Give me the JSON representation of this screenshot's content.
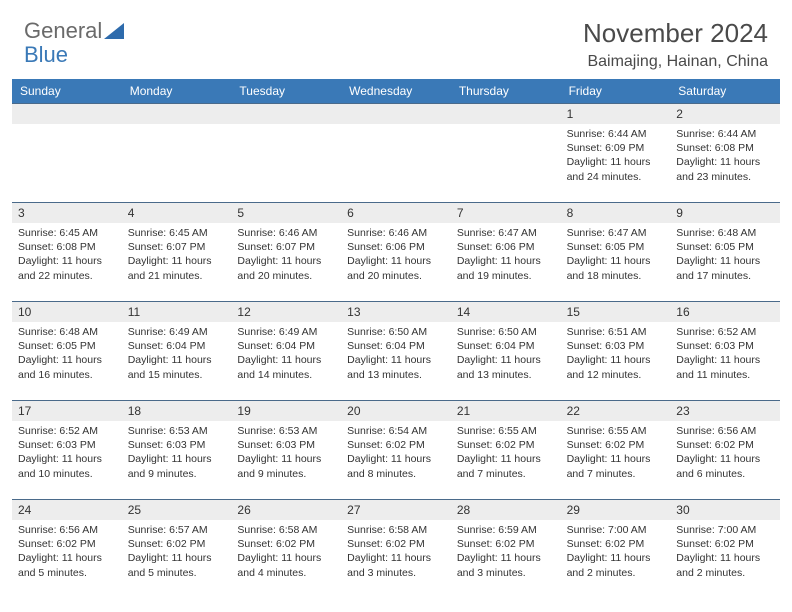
{
  "brand": {
    "part1": "General",
    "part2": "Blue"
  },
  "title": "November 2024",
  "location": "Baimajing, Hainan, China",
  "colors": {
    "header_bg": "#3a79b7",
    "header_text": "#ffffff",
    "daynum_bg": "#ededed",
    "divider": "#4a6a8a",
    "text": "#333333",
    "background": "#ffffff"
  },
  "dayNames": [
    "Sunday",
    "Monday",
    "Tuesday",
    "Wednesday",
    "Thursday",
    "Friday",
    "Saturday"
  ],
  "weeks": [
    [
      null,
      null,
      null,
      null,
      null,
      {
        "n": "1",
        "sr": "Sunrise: 6:44 AM",
        "ss": "Sunset: 6:09 PM",
        "d1": "Daylight: 11 hours",
        "d2": "and 24 minutes."
      },
      {
        "n": "2",
        "sr": "Sunrise: 6:44 AM",
        "ss": "Sunset: 6:08 PM",
        "d1": "Daylight: 11 hours",
        "d2": "and 23 minutes."
      }
    ],
    [
      {
        "n": "3",
        "sr": "Sunrise: 6:45 AM",
        "ss": "Sunset: 6:08 PM",
        "d1": "Daylight: 11 hours",
        "d2": "and 22 minutes."
      },
      {
        "n": "4",
        "sr": "Sunrise: 6:45 AM",
        "ss": "Sunset: 6:07 PM",
        "d1": "Daylight: 11 hours",
        "d2": "and 21 minutes."
      },
      {
        "n": "5",
        "sr": "Sunrise: 6:46 AM",
        "ss": "Sunset: 6:07 PM",
        "d1": "Daylight: 11 hours",
        "d2": "and 20 minutes."
      },
      {
        "n": "6",
        "sr": "Sunrise: 6:46 AM",
        "ss": "Sunset: 6:06 PM",
        "d1": "Daylight: 11 hours",
        "d2": "and 20 minutes."
      },
      {
        "n": "7",
        "sr": "Sunrise: 6:47 AM",
        "ss": "Sunset: 6:06 PM",
        "d1": "Daylight: 11 hours",
        "d2": "and 19 minutes."
      },
      {
        "n": "8",
        "sr": "Sunrise: 6:47 AM",
        "ss": "Sunset: 6:05 PM",
        "d1": "Daylight: 11 hours",
        "d2": "and 18 minutes."
      },
      {
        "n": "9",
        "sr": "Sunrise: 6:48 AM",
        "ss": "Sunset: 6:05 PM",
        "d1": "Daylight: 11 hours",
        "d2": "and 17 minutes."
      }
    ],
    [
      {
        "n": "10",
        "sr": "Sunrise: 6:48 AM",
        "ss": "Sunset: 6:05 PM",
        "d1": "Daylight: 11 hours",
        "d2": "and 16 minutes."
      },
      {
        "n": "11",
        "sr": "Sunrise: 6:49 AM",
        "ss": "Sunset: 6:04 PM",
        "d1": "Daylight: 11 hours",
        "d2": "and 15 minutes."
      },
      {
        "n": "12",
        "sr": "Sunrise: 6:49 AM",
        "ss": "Sunset: 6:04 PM",
        "d1": "Daylight: 11 hours",
        "d2": "and 14 minutes."
      },
      {
        "n": "13",
        "sr": "Sunrise: 6:50 AM",
        "ss": "Sunset: 6:04 PM",
        "d1": "Daylight: 11 hours",
        "d2": "and 13 minutes."
      },
      {
        "n": "14",
        "sr": "Sunrise: 6:50 AM",
        "ss": "Sunset: 6:04 PM",
        "d1": "Daylight: 11 hours",
        "d2": "and 13 minutes."
      },
      {
        "n": "15",
        "sr": "Sunrise: 6:51 AM",
        "ss": "Sunset: 6:03 PM",
        "d1": "Daylight: 11 hours",
        "d2": "and 12 minutes."
      },
      {
        "n": "16",
        "sr": "Sunrise: 6:52 AM",
        "ss": "Sunset: 6:03 PM",
        "d1": "Daylight: 11 hours",
        "d2": "and 11 minutes."
      }
    ],
    [
      {
        "n": "17",
        "sr": "Sunrise: 6:52 AM",
        "ss": "Sunset: 6:03 PM",
        "d1": "Daylight: 11 hours",
        "d2": "and 10 minutes."
      },
      {
        "n": "18",
        "sr": "Sunrise: 6:53 AM",
        "ss": "Sunset: 6:03 PM",
        "d1": "Daylight: 11 hours",
        "d2": "and 9 minutes."
      },
      {
        "n": "19",
        "sr": "Sunrise: 6:53 AM",
        "ss": "Sunset: 6:03 PM",
        "d1": "Daylight: 11 hours",
        "d2": "and 9 minutes."
      },
      {
        "n": "20",
        "sr": "Sunrise: 6:54 AM",
        "ss": "Sunset: 6:02 PM",
        "d1": "Daylight: 11 hours",
        "d2": "and 8 minutes."
      },
      {
        "n": "21",
        "sr": "Sunrise: 6:55 AM",
        "ss": "Sunset: 6:02 PM",
        "d1": "Daylight: 11 hours",
        "d2": "and 7 minutes."
      },
      {
        "n": "22",
        "sr": "Sunrise: 6:55 AM",
        "ss": "Sunset: 6:02 PM",
        "d1": "Daylight: 11 hours",
        "d2": "and 7 minutes."
      },
      {
        "n": "23",
        "sr": "Sunrise: 6:56 AM",
        "ss": "Sunset: 6:02 PM",
        "d1": "Daylight: 11 hours",
        "d2": "and 6 minutes."
      }
    ],
    [
      {
        "n": "24",
        "sr": "Sunrise: 6:56 AM",
        "ss": "Sunset: 6:02 PM",
        "d1": "Daylight: 11 hours",
        "d2": "and 5 minutes."
      },
      {
        "n": "25",
        "sr": "Sunrise: 6:57 AM",
        "ss": "Sunset: 6:02 PM",
        "d1": "Daylight: 11 hours",
        "d2": "and 5 minutes."
      },
      {
        "n": "26",
        "sr": "Sunrise: 6:58 AM",
        "ss": "Sunset: 6:02 PM",
        "d1": "Daylight: 11 hours",
        "d2": "and 4 minutes."
      },
      {
        "n": "27",
        "sr": "Sunrise: 6:58 AM",
        "ss": "Sunset: 6:02 PM",
        "d1": "Daylight: 11 hours",
        "d2": "and 3 minutes."
      },
      {
        "n": "28",
        "sr": "Sunrise: 6:59 AM",
        "ss": "Sunset: 6:02 PM",
        "d1": "Daylight: 11 hours",
        "d2": "and 3 minutes."
      },
      {
        "n": "29",
        "sr": "Sunrise: 7:00 AM",
        "ss": "Sunset: 6:02 PM",
        "d1": "Daylight: 11 hours",
        "d2": "and 2 minutes."
      },
      {
        "n": "30",
        "sr": "Sunrise: 7:00 AM",
        "ss": "Sunset: 6:02 PM",
        "d1": "Daylight: 11 hours",
        "d2": "and 2 minutes."
      }
    ]
  ]
}
